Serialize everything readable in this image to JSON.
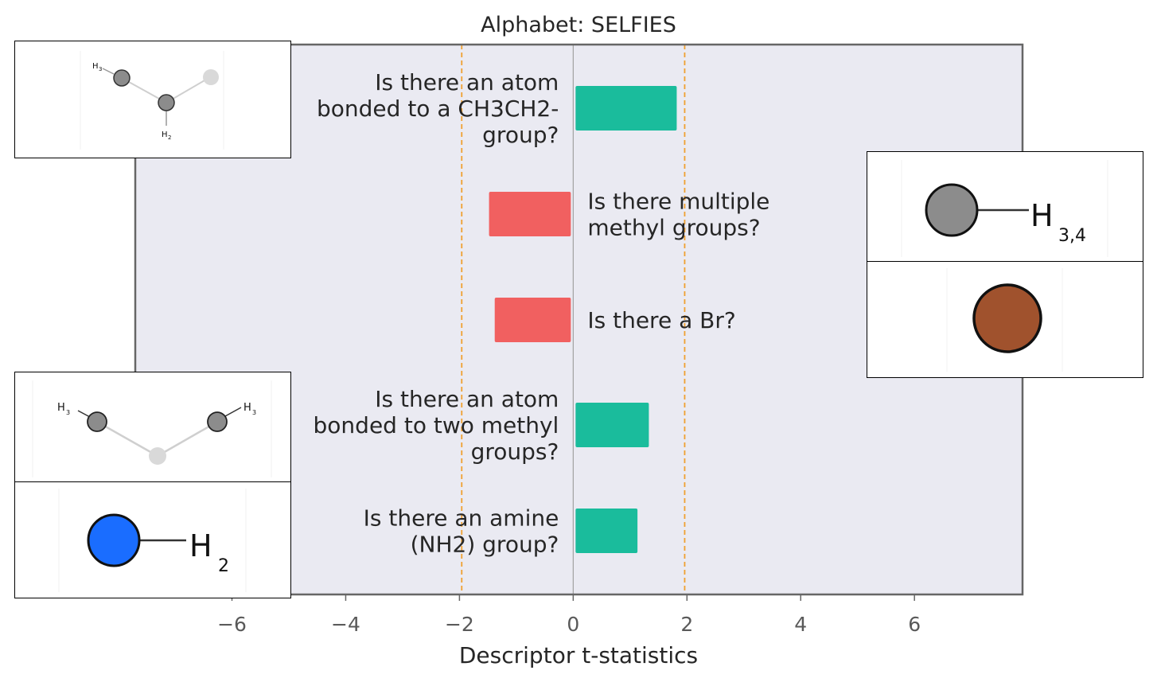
{
  "chart_data": {
    "type": "bar",
    "orientation": "horizontal",
    "title": "Alphabet: SELFIES",
    "xlabel": "Descriptor t-statistics",
    "xlim": [
      -7.7,
      7.9
    ],
    "xticks": [
      -6,
      -4,
      -2,
      0,
      2,
      4,
      6
    ],
    "xtick_labels": [
      "−6",
      "−4",
      "−2",
      "0",
      "2",
      "4",
      "6"
    ],
    "significance_lines": [
      -1.96,
      1.96
    ],
    "categories": [
      [
        "Is there an atom",
        "bonded to a CH3CH2-",
        "group?"
      ],
      [
        "Is there multiple",
        "methyl groups?"
      ],
      [
        "Is there a Br?"
      ],
      [
        "Is there an atom",
        "bonded to two methyl",
        "groups?"
      ],
      [
        "Is there an amine",
        "(NH2) group?"
      ]
    ],
    "values": [
      1.82,
      -1.48,
      -1.38,
      1.33,
      1.13
    ],
    "colors": {
      "positive": "#1abc9c",
      "negative": "#f16060",
      "background": "#eaeaf2",
      "frame": "#666666",
      "significance": "#f0a030",
      "zero_line": "#a0a0a0"
    }
  },
  "insets": {
    "top_left": {
      "labels": [
        "H",
        "3",
        "H",
        "2"
      ]
    },
    "mid_left": {
      "labels": [
        "H",
        "3",
        "H",
        "3"
      ]
    },
    "bottom_left": {
      "labels": [
        "H",
        "2"
      ],
      "atom_color": "#1a6dff"
    },
    "top_right": {
      "labels": [
        "H",
        "3,4"
      ],
      "atom_color": "#8c8c8c"
    },
    "mid_right": {
      "atom_color": "#a0522d"
    }
  }
}
